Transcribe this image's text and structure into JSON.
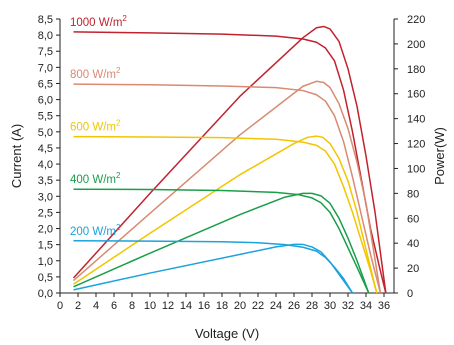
{
  "chart_data": {
    "type": "line",
    "title": "",
    "xlabel": "Voltage (V)",
    "ylabel_left": "Current (A)",
    "ylabel_right": "Power(W)",
    "xlim": [
      0,
      37
    ],
    "ylim_left": [
      0,
      8.5
    ],
    "ylim_right": [
      0,
      220
    ],
    "x_ticks": [
      "0",
      "2",
      "4",
      "6",
      "8",
      "10",
      "12",
      "14",
      "16",
      "18",
      "20",
      "22",
      "24",
      "26",
      "28",
      "30",
      "32",
      "34",
      "36"
    ],
    "y_left_ticks": [
      "0,0",
      "0,5",
      "1,0",
      "1,5",
      "2,0",
      "2,5",
      "3,0",
      "3,5",
      "4,0",
      "4,5",
      "5,0",
      "5,5",
      "6,0",
      "6,5",
      "7,0",
      "7,5",
      "8,0",
      "8,5"
    ],
    "y_right_ticks": [
      "0",
      "20",
      "40",
      "60",
      "80",
      "100",
      "120",
      "140",
      "160",
      "180",
      "200",
      "220"
    ],
    "grid": false,
    "legend": "inline-left",
    "series": [
      {
        "name": "1000 W/m²",
        "label_base": "1000 W/m",
        "label_sup": "2",
        "color": "#c0232e",
        "current": {
          "x": [
            1.5,
            10,
            18,
            24,
            27,
            28.5,
            29.5,
            30.5,
            31.5,
            32.5,
            33.5,
            34.5,
            35.5,
            36.2
          ],
          "y": [
            8.1,
            8.07,
            8.03,
            7.97,
            7.88,
            7.78,
            7.6,
            7.2,
            6.3,
            5.0,
            3.5,
            2.0,
            0.8,
            0.0
          ]
        },
        "power": {
          "x": [
            1.5,
            10,
            20,
            27,
            28.5,
            29.3,
            30,
            31,
            32,
            33,
            34,
            35,
            36.2
          ],
          "y": [
            12,
            80,
            158,
            205,
            213,
            214,
            212,
            202,
            180,
            150,
            110,
            65,
            0
          ]
        }
      },
      {
        "name": "800 W/m²",
        "label_base": "800 W/m",
        "label_sup": "2",
        "color": "#d98a72",
        "current": {
          "x": [
            1.5,
            10,
            18,
            24,
            27,
            28.5,
            29.5,
            30.5,
            31.5,
            32.5,
            33.5,
            34.5,
            35.6
          ],
          "y": [
            6.48,
            6.46,
            6.42,
            6.37,
            6.28,
            6.15,
            5.95,
            5.5,
            4.7,
            3.6,
            2.4,
            1.2,
            0.0
          ]
        },
        "power": {
          "x": [
            1.5,
            10,
            20,
            27,
            28.5,
            29.3,
            30,
            31,
            32,
            33,
            34,
            35.6
          ],
          "y": [
            10,
            64,
            127,
            166,
            170,
            169,
            165,
            152,
            132,
            105,
            72,
            0
          ]
        }
      },
      {
        "name": "600 W/m²",
        "label_base": "600 W/m",
        "label_sup": "2",
        "color": "#f2c500",
        "current": {
          "x": [
            1.5,
            10,
            18,
            24,
            27,
            28.5,
            29.5,
            30.5,
            31.5,
            32.5,
            33.5,
            34.5,
            35.2
          ],
          "y": [
            4.85,
            4.84,
            4.82,
            4.77,
            4.68,
            4.58,
            4.4,
            4.0,
            3.3,
            2.5,
            1.6,
            0.7,
            0.0
          ]
        },
        "power": {
          "x": [
            1.5,
            10,
            20,
            26,
            27.5,
            28.5,
            29.2,
            30,
            31,
            32,
            33,
            34,
            35.2
          ],
          "y": [
            7,
            48,
            95,
            120,
            125,
            126,
            125,
            120,
            108,
            90,
            65,
            35,
            0
          ]
        }
      },
      {
        "name": "400 W/m²",
        "label_base": "400 W/m",
        "label_sup": "2",
        "color": "#1a9e4a",
        "current": {
          "x": [
            1.5,
            10,
            18,
            24,
            26.5,
            28,
            29,
            30,
            31,
            32,
            33,
            34.3
          ],
          "y": [
            3.22,
            3.21,
            3.18,
            3.12,
            3.05,
            2.95,
            2.8,
            2.5,
            2.0,
            1.4,
            0.8,
            0.0
          ]
        },
        "power": {
          "x": [
            1.5,
            10,
            20,
            25,
            27,
            28,
            29,
            30,
            31,
            32,
            33,
            34.3
          ],
          "y": [
            5,
            32,
            63,
            77,
            80,
            80,
            78,
            72,
            60,
            44,
            26,
            0
          ]
        }
      },
      {
        "name": "200 W/m²",
        "label_base": "200 W/m",
        "label_sup": "2",
        "color": "#1aa3dc",
        "current": {
          "x": [
            1.5,
            10,
            18,
            22,
            25,
            27,
            28.5,
            29.5,
            30.5,
            31.5,
            32.5
          ],
          "y": [
            1.62,
            1.61,
            1.59,
            1.56,
            1.5,
            1.42,
            1.3,
            1.1,
            0.8,
            0.45,
            0.0
          ]
        },
        "power": {
          "x": [
            1.5,
            10,
            20,
            24,
            26,
            27,
            28,
            29,
            30,
            31,
            32.5
          ],
          "y": [
            2.5,
            16,
            31,
            37,
            39,
            39,
            37,
            33,
            25,
            15,
            0
          ]
        }
      }
    ]
  }
}
